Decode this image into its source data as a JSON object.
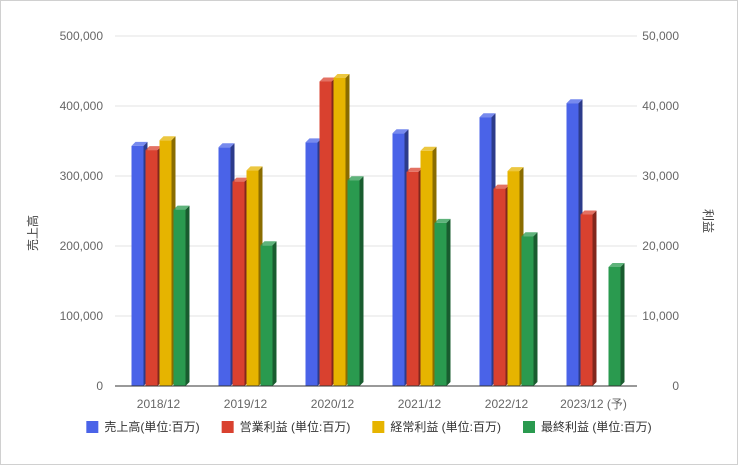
{
  "chart_data": {
    "type": "bar",
    "title": "",
    "xlabel": "",
    "ylabel_left": "売上高",
    "ylabel_right": "利益",
    "categories": [
      "2018/12",
      "2019/12",
      "2020/12",
      "2021/12",
      "2022/12",
      "2023/12 (予)"
    ],
    "ylim_left": [
      0,
      500000
    ],
    "ylim_right": [
      0,
      50000
    ],
    "left_ticks": [
      "0",
      "100,000",
      "200,000",
      "300,000",
      "400,000",
      "500,000"
    ],
    "right_ticks": [
      "0",
      "10,000",
      "20,000",
      "30,000",
      "40,000",
      "50,000"
    ],
    "grid": true,
    "legend_position": "bottom",
    "series": [
      {
        "name": "売上高(単位:百万)",
        "axis": "left",
        "color": "#4a63e8",
        "values": [
          343000,
          341000,
          348000,
          361000,
          384000,
          404000
        ]
      },
      {
        "name": "営業利益 (単位:百万)",
        "axis": "right",
        "color": "#d9412f",
        "values": [
          33700,
          29200,
          43500,
          30600,
          28200,
          24500
        ]
      },
      {
        "name": "経常利益 (単位:百万)",
        "axis": "right",
        "color": "#e6b400",
        "values": [
          35100,
          30800,
          44000,
          33600,
          30700,
          null
        ]
      },
      {
        "name": "最終利益 (単位:百万)",
        "axis": "right",
        "color": "#2a9a4f",
        "values": [
          25200,
          20100,
          29400,
          23300,
          21400,
          17000
        ]
      }
    ]
  }
}
